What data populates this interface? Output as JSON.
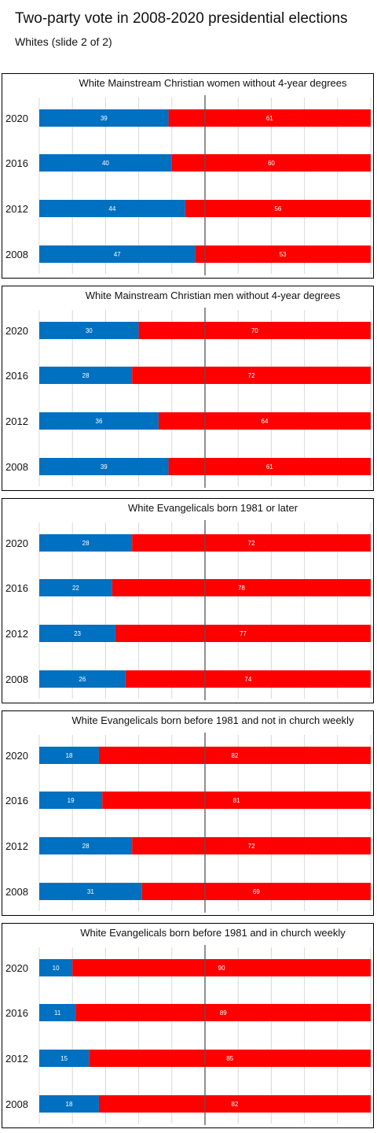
{
  "title": "Two-party vote in 2008-2020 presidential elections",
  "subtitle": "Whites (slide 2 of 2)",
  "colors": {
    "left_series": "#0070c0",
    "right_series": "#ff0000",
    "gridline": "#d9d9d9",
    "midline": "#555555"
  },
  "chart_data": [
    {
      "type": "bar",
      "orientation": "horizontal",
      "stacked": true,
      "title": "White Mainstream Christian women without 4-year degrees",
      "categories": [
        "2020",
        "2016",
        "2012",
        "2008"
      ],
      "series": [
        {
          "values": [
            39,
            40,
            44,
            47
          ],
          "color": "#0070c0"
        },
        {
          "values": [
            61,
            60,
            56,
            53
          ],
          "color": "#ff0000"
        }
      ],
      "xlim": [
        0,
        100
      ],
      "grid": true,
      "reference_line": 50
    },
    {
      "type": "bar",
      "orientation": "horizontal",
      "stacked": true,
      "title": "White Mainstream Christian men without 4-year degrees",
      "categories": [
        "2020",
        "2016",
        "2012",
        "2008"
      ],
      "series": [
        {
          "values": [
            30,
            28,
            36,
            39
          ],
          "color": "#0070c0"
        },
        {
          "values": [
            70,
            72,
            64,
            61
          ],
          "color": "#ff0000"
        }
      ],
      "xlim": [
        0,
        100
      ],
      "grid": true,
      "reference_line": 50
    },
    {
      "type": "bar",
      "orientation": "horizontal",
      "stacked": true,
      "title": "White Evangelicals born 1981 or later",
      "categories": [
        "2020",
        "2016",
        "2012",
        "2008"
      ],
      "series": [
        {
          "values": [
            28,
            22,
            23,
            26
          ],
          "color": "#0070c0"
        },
        {
          "values": [
            72,
            78,
            77,
            74
          ],
          "color": "#ff0000"
        }
      ],
      "xlim": [
        0,
        100
      ],
      "grid": true,
      "reference_line": 50
    },
    {
      "type": "bar",
      "orientation": "horizontal",
      "stacked": true,
      "title": "White Evangelicals born before 1981 and not in church weekly",
      "categories": [
        "2020",
        "2016",
        "2012",
        "2008"
      ],
      "series": [
        {
          "values": [
            18,
            19,
            28,
            31
          ],
          "color": "#0070c0"
        },
        {
          "values": [
            82,
            81,
            72,
            69
          ],
          "color": "#ff0000"
        }
      ],
      "xlim": [
        0,
        100
      ],
      "grid": true,
      "reference_line": 50
    },
    {
      "type": "bar",
      "orientation": "horizontal",
      "stacked": true,
      "title": "White Evangelicals born before 1981 and in church weekly",
      "categories": [
        "2020",
        "2016",
        "2012",
        "2008"
      ],
      "series": [
        {
          "values": [
            10,
            11,
            15,
            18
          ],
          "color": "#0070c0"
        },
        {
          "values": [
            90,
            89,
            85,
            82
          ],
          "color": "#ff0000"
        }
      ],
      "xlim": [
        0,
        100
      ],
      "grid": true,
      "reference_line": 50
    }
  ]
}
